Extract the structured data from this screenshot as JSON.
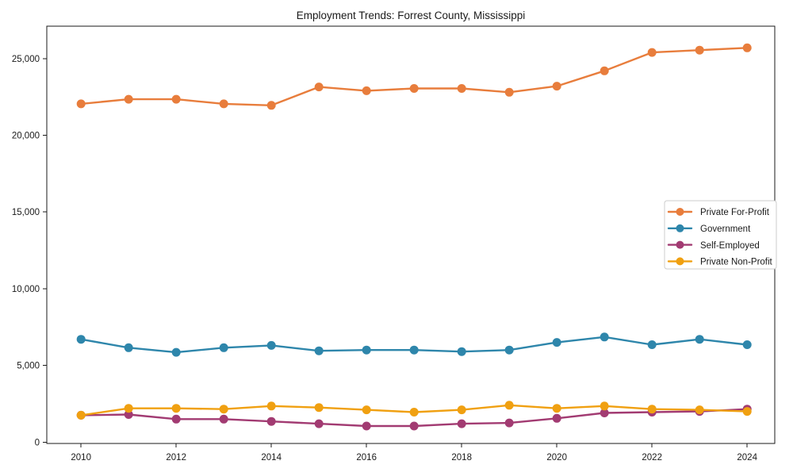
{
  "chart_data": {
    "type": "line",
    "title": "Employment Trends: Forrest County, Mississippi",
    "x": [
      2010,
      2011,
      2012,
      2013,
      2014,
      2015,
      2016,
      2017,
      2018,
      2019,
      2020,
      2021,
      2022,
      2023,
      2024
    ],
    "series": [
      {
        "name": "Private For-Profit",
        "color": "#E87D3C",
        "values": [
          22050,
          22350,
          22350,
          22050,
          21950,
          23150,
          22900,
          23050,
          23050,
          22800,
          23200,
          24200,
          25400,
          25550,
          25700
        ]
      },
      {
        "name": "Government",
        "color": "#2E86AB",
        "values": [
          6700,
          6150,
          5850,
          6150,
          6300,
          5950,
          6000,
          6000,
          5900,
          6000,
          6500,
          6850,
          6350,
          6700,
          6350
        ]
      },
      {
        "name": "Self-Employed",
        "color": "#A23B72",
        "values": [
          1750,
          1800,
          1500,
          1500,
          1350,
          1200,
          1050,
          1050,
          1200,
          1250,
          1550,
          1900,
          1950,
          2000,
          2150
        ]
      },
      {
        "name": "Private Non-Profit",
        "color": "#F0A011",
        "values": [
          1750,
          2200,
          2200,
          2150,
          2350,
          2250,
          2100,
          1950,
          2100,
          2400,
          2200,
          2350,
          2150,
          2100,
          2000
        ]
      }
    ],
    "xticks": [
      2010,
      2012,
      2014,
      2016,
      2018,
      2020,
      2022,
      2024
    ],
    "yticks": [
      0,
      5000,
      10000,
      15000,
      20000,
      25000
    ],
    "xlim": [
      2009.28,
      2024.58
    ],
    "ylim": [
      -90,
      27110
    ],
    "grid": false,
    "legend": {
      "position": "center-right",
      "border_color": "#cccccc",
      "background": "#ffffff"
    },
    "axis_color": "#1a1a1a",
    "text_color": "#1a1a1a",
    "background": "#ffffff"
  }
}
